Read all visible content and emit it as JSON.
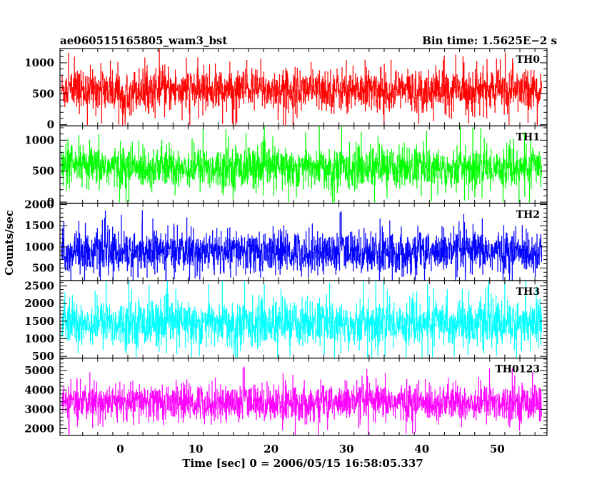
{
  "chart_data": {
    "type": "line",
    "title_left": "ae060515165805_wam3_bst",
    "title_right": "Bin time: 1.5625E−2 s",
    "xlabel": "Time [sec] 0 = 2006/05/15 16:58:05.337",
    "ylabel": "Counts/sec",
    "xlim": [
      -8.0,
      56.6
    ],
    "x_ticks": [
      0,
      10,
      20,
      30,
      40,
      50
    ],
    "data_x_range": [
      -7.8,
      55.9
    ],
    "bin_time": 0.015625,
    "grid": false,
    "panels": [
      {
        "label": "TH0",
        "color": "#ff0000",
        "ylim": [
          -20,
          1230
        ],
        "y_ticks": [
          0,
          500,
          1000
        ],
        "mean": 560,
        "sigma": 170,
        "min": 0,
        "max": 1230
      },
      {
        "label": "TH1",
        "color": "#00ff00",
        "ylim": [
          -20,
          1230
        ],
        "y_ticks": [
          0,
          500,
          1000
        ],
        "mean": 560,
        "sigma": 170,
        "min": 0,
        "max": 1230
      },
      {
        "label": "TH2",
        "color": "#0000ff",
        "ylim": [
          200,
          2030
        ],
        "y_ticks": [
          500,
          1000,
          1500,
          2000
        ],
        "mean": 880,
        "sigma": 250,
        "min": 220,
        "max": 2030
      },
      {
        "label": "TH3",
        "color": "#00ffff",
        "ylim": [
          450,
          2650
        ],
        "y_ticks": [
          500,
          1000,
          1500,
          2000,
          2500
        ],
        "mean": 1450,
        "sigma": 330,
        "min": 480,
        "max": 2650
      },
      {
        "label": "TH0123",
        "color": "#ff00ff",
        "ylim": [
          1650,
          5650
        ],
        "y_ticks": [
          2000,
          3000,
          4000,
          5000
        ],
        "mean": 3350,
        "sigma": 480,
        "min": 1700,
        "max": 5650
      }
    ]
  }
}
